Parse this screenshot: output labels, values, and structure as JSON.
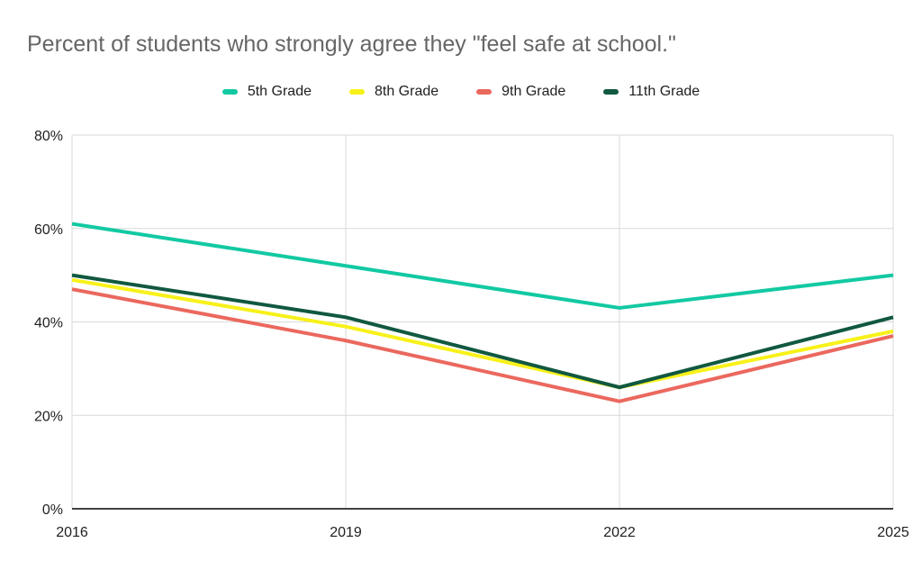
{
  "chart": {
    "title": "Percent of students who strongly agree they \"feel safe at school.\""
  },
  "chart_data": {
    "type": "line",
    "title": "Percent of students who strongly agree they \"feel safe at school.\"",
    "categories": [
      "2016",
      "2019",
      "2022",
      "2025"
    ],
    "series": [
      {
        "name": "5th Grade",
        "color": "#12C9A2",
        "values": [
          61,
          52,
          43,
          50
        ]
      },
      {
        "name": "8th Grade",
        "color": "#F7F11A",
        "values": [
          49,
          39,
          26,
          38
        ]
      },
      {
        "name": "9th Grade",
        "color": "#EB685E",
        "values": [
          47,
          36,
          23,
          37
        ]
      },
      {
        "name": "11th Grade",
        "color": "#115840",
        "values": [
          50,
          41,
          26,
          41
        ]
      }
    ],
    "xlabel": "",
    "ylabel": "",
    "ylim": [
      0,
      80
    ],
    "ytick_labels": [
      "0%",
      "20%",
      "40%",
      "60%",
      "80%"
    ],
    "ytick_values": [
      0,
      20,
      40,
      60,
      80
    ],
    "grid": true,
    "legend_position": "top"
  },
  "style_colors": {
    "title_text": "#666666",
    "tick_text": "#1f1f1f",
    "gridline": "#D9D9D9",
    "axis_line": "#424242",
    "background": "#FFFFFF"
  }
}
